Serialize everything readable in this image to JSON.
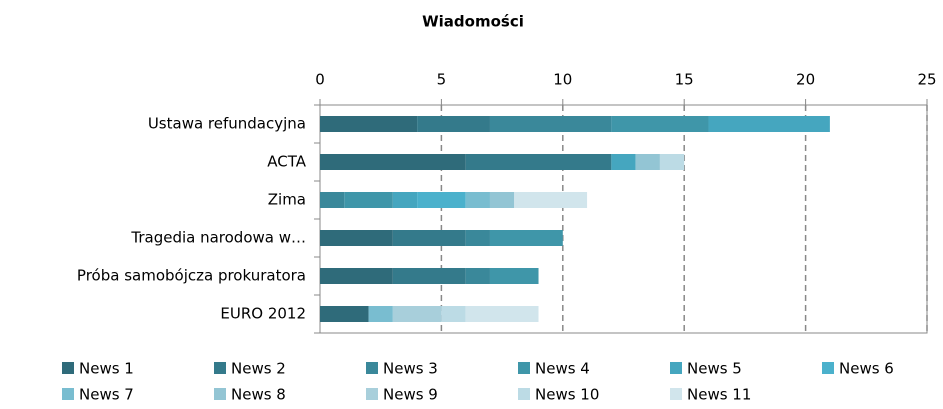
{
  "chart_data": {
    "type": "stacked-barh",
    "title": "Wiadomości",
    "categories": [
      "Ustawa refundacyjna",
      "ACTA",
      "Zima",
      "Tragedia narodowa w…",
      "Próba samobójcza prokuratora",
      "EURO 2012"
    ],
    "series": [
      {
        "name": "News 1",
        "color": "#2f6b7a",
        "values": [
          4,
          6,
          0,
          3,
          3,
          2
        ]
      },
      {
        "name": "News 2",
        "color": "#347a8b",
        "values": [
          3,
          6,
          0,
          3,
          3,
          0
        ]
      },
      {
        "name": "News 3",
        "color": "#3a889a",
        "values": [
          5,
          0,
          1,
          1,
          1,
          0
        ]
      },
      {
        "name": "News 4",
        "color": "#3f96a9",
        "values": [
          4,
          0,
          2,
          3,
          2,
          0
        ]
      },
      {
        "name": "News 5",
        "color": "#45a6bf",
        "values": [
          5,
          1,
          1,
          0,
          0,
          0
        ]
      },
      {
        "name": "News 6",
        "color": "#4bb1cc",
        "values": [
          0,
          0,
          2,
          0,
          0,
          0
        ]
      },
      {
        "name": "News 7",
        "color": "#79bdd0",
        "values": [
          0,
          0,
          1,
          0,
          0,
          1
        ]
      },
      {
        "name": "News 8",
        "color": "#93c5d4",
        "values": [
          0,
          1,
          1,
          0,
          0,
          0
        ]
      },
      {
        "name": "News 9",
        "color": "#a8cfdb",
        "values": [
          0,
          0,
          0,
          0,
          0,
          2
        ]
      },
      {
        "name": "News 10",
        "color": "#bcdbe5",
        "values": [
          0,
          1,
          0,
          0,
          0,
          1
        ]
      },
      {
        "name": "News 11",
        "color": "#d1e5ec",
        "values": [
          0,
          0,
          3,
          0,
          0,
          3
        ]
      }
    ],
    "xlim": [
      0,
      25
    ],
    "xticks": [
      0,
      5,
      10,
      15,
      20,
      25
    ],
    "grid": true
  }
}
